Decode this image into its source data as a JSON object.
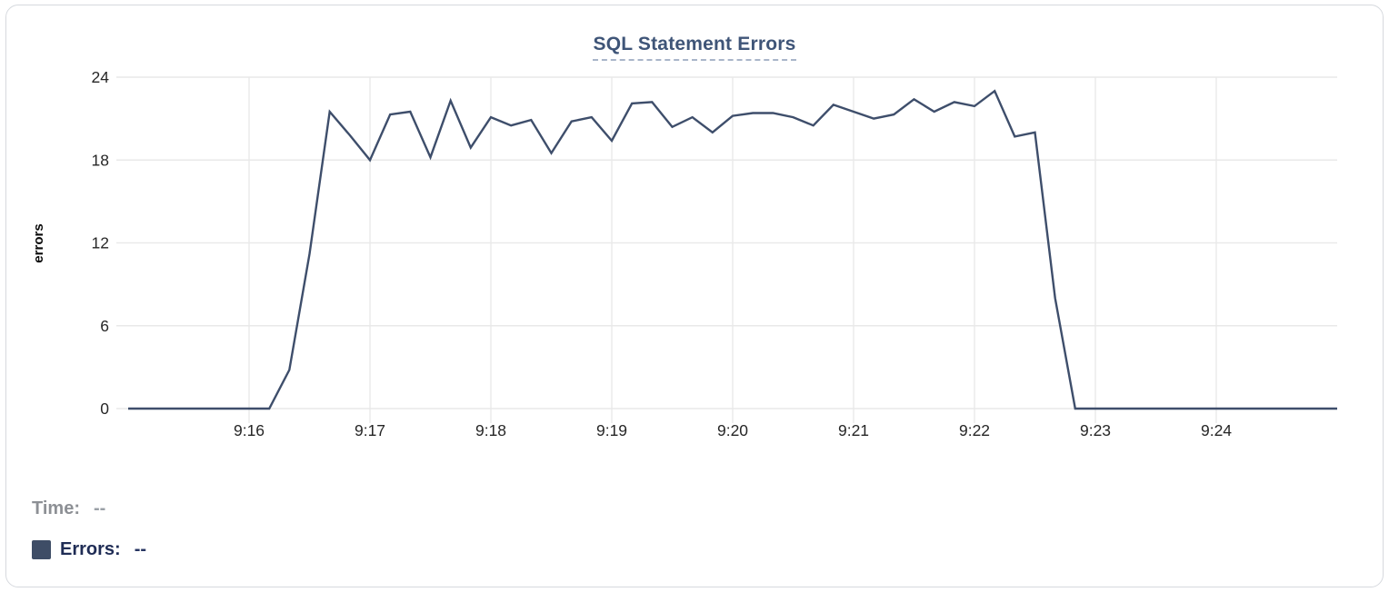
{
  "chart_data": {
    "type": "line",
    "title": "SQL Statement Errors",
    "xlabel": "",
    "ylabel": "errors",
    "ylim": [
      0,
      24
    ],
    "y_ticks": [
      0,
      6,
      12,
      18,
      24
    ],
    "x_start": "9:15:00",
    "x_end": "9:25:00",
    "x_ticks": [
      "9:16",
      "9:17",
      "9:18",
      "9:19",
      "9:20",
      "9:21",
      "9:22",
      "9:23",
      "9:24"
    ],
    "grid": "on",
    "series_name": "Errors",
    "series_color": "#3e4e6b",
    "points": [
      [
        "9:15:00",
        0
      ],
      [
        "9:15:10",
        0
      ],
      [
        "9:15:20",
        0
      ],
      [
        "9:15:30",
        0
      ],
      [
        "9:15:40",
        0
      ],
      [
        "9:15:50",
        0
      ],
      [
        "9:16:00",
        0
      ],
      [
        "9:16:10",
        0
      ],
      [
        "9:16:20",
        2.8
      ],
      [
        "9:16:30",
        11.2
      ],
      [
        "9:16:40",
        21.5
      ],
      [
        "9:16:50",
        19.8
      ],
      [
        "9:17:00",
        18
      ],
      [
        "9:17:10",
        21.3
      ],
      [
        "9:17:20",
        21.5
      ],
      [
        "9:17:30",
        18.2
      ],
      [
        "9:17:40",
        22.3
      ],
      [
        "9:17:50",
        18.9
      ],
      [
        "9:18:00",
        21.1
      ],
      [
        "9:18:10",
        20.5
      ],
      [
        "9:18:20",
        20.9
      ],
      [
        "9:18:30",
        18.5
      ],
      [
        "9:18:40",
        20.8
      ],
      [
        "9:18:50",
        21.1
      ],
      [
        "9:19:00",
        19.4
      ],
      [
        "9:19:10",
        22.1
      ],
      [
        "9:19:20",
        22.2
      ],
      [
        "9:19:30",
        20.4
      ],
      [
        "9:19:40",
        21.1
      ],
      [
        "9:19:50",
        20.0
      ],
      [
        "9:20:00",
        21.2
      ],
      [
        "9:20:10",
        21.4
      ],
      [
        "9:20:20",
        21.4
      ],
      [
        "9:20:30",
        21.1
      ],
      [
        "9:20:40",
        20.5
      ],
      [
        "9:20:50",
        22.0
      ],
      [
        "9:21:00",
        21.5
      ],
      [
        "9:21:10",
        21.0
      ],
      [
        "9:21:20",
        21.3
      ],
      [
        "9:21:30",
        22.4
      ],
      [
        "9:21:40",
        21.5
      ],
      [
        "9:21:50",
        22.2
      ],
      [
        "9:22:00",
        21.9
      ],
      [
        "9:22:10",
        23.0
      ],
      [
        "9:22:20",
        19.7
      ],
      [
        "9:22:30",
        20.0
      ],
      [
        "9:22:40",
        8.0
      ],
      [
        "9:22:50",
        0
      ],
      [
        "9:23:00",
        0
      ],
      [
        "9:23:10",
        0
      ],
      [
        "9:23:20",
        0
      ],
      [
        "9:23:30",
        0
      ],
      [
        "9:23:40",
        0
      ],
      [
        "9:23:50",
        0
      ],
      [
        "9:24:00",
        0
      ],
      [
        "9:24:10",
        0
      ],
      [
        "9:24:20",
        0
      ],
      [
        "9:24:30",
        0
      ],
      [
        "9:24:40",
        0
      ],
      [
        "9:24:50",
        0
      ],
      [
        "9:25:00",
        0
      ]
    ]
  },
  "legend": {
    "time_label": "Time:",
    "time_value": "--",
    "errors_label": "Errors:",
    "errors_value": "--"
  },
  "theme": {
    "grid_color": "#e9e9e9",
    "axis_text_color": "#262626",
    "title_color": "#3f5578",
    "card_border_color": "#d6d9de",
    "swatch_color": "#3e4d66"
  }
}
